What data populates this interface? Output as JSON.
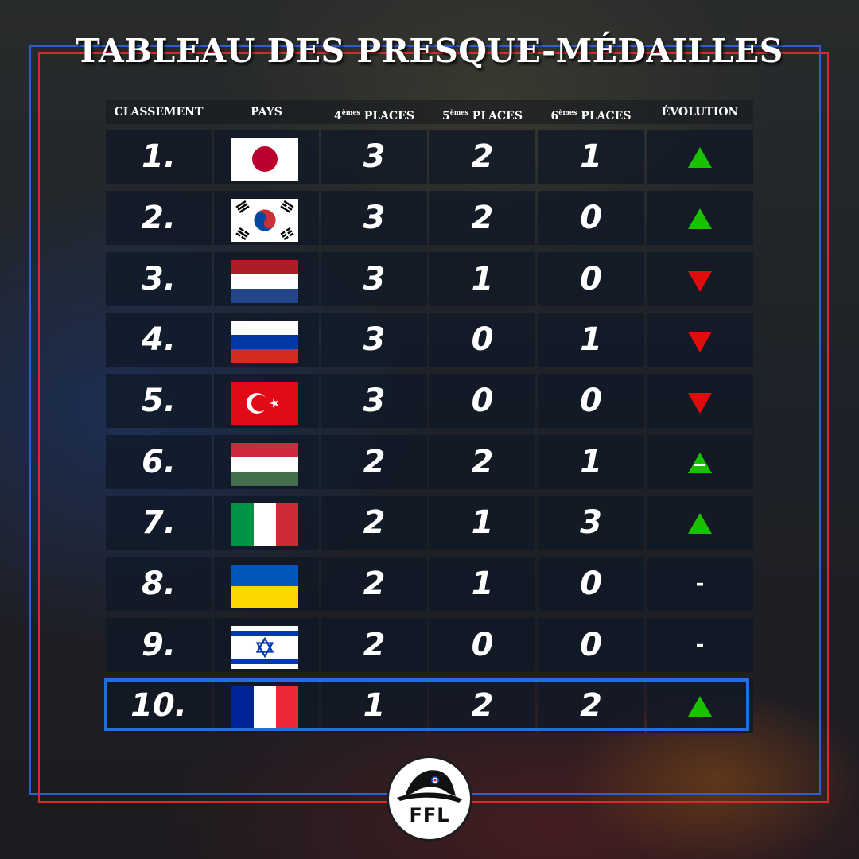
{
  "title": "TABLEAU DES PRESQUE-MÉDAILLES",
  "headers": {
    "rank": "CLASSEMENT",
    "country": "PAYS",
    "fourth_sup": "èmes",
    "fourth_num": "4",
    "fourth_label": "PLACES",
    "fifth_sup": "èmes",
    "fifth_num": "5",
    "fifth_label": "PLACES",
    "sixth_sup": "èmes",
    "sixth_num": "6",
    "sixth_label": "PLACES",
    "evolution": "ÉVOLUTION"
  },
  "rows": [
    {
      "rank": "1.",
      "flag": "japan-flag-icon",
      "fourth": "3",
      "fifth": "2",
      "sixth": "1",
      "evolution": "up"
    },
    {
      "rank": "2.",
      "flag": "south-korea-flag-icon",
      "fourth": "3",
      "fifth": "2",
      "sixth": "0",
      "evolution": "up"
    },
    {
      "rank": "3.",
      "flag": "netherlands-flag-icon",
      "fourth": "3",
      "fifth": "1",
      "sixth": "0",
      "evolution": "down"
    },
    {
      "rank": "4.",
      "flag": "russia-flag-icon",
      "fourth": "3",
      "fifth": "0",
      "sixth": "1",
      "evolution": "down"
    },
    {
      "rank": "5.",
      "flag": "turkey-flag-icon",
      "fourth": "3",
      "fifth": "0",
      "sixth": "0",
      "evolution": "down"
    },
    {
      "rank": "6.",
      "flag": "hungary-flag-icon",
      "fourth": "2",
      "fifth": "2",
      "sixth": "1",
      "evolution": "up-dash"
    },
    {
      "rank": "7.",
      "flag": "italy-flag-icon",
      "fourth": "2",
      "fifth": "1",
      "sixth": "3",
      "evolution": "up"
    },
    {
      "rank": "8.",
      "flag": "ukraine-flag-icon",
      "fourth": "2",
      "fifth": "1",
      "sixth": "0",
      "evolution": "-"
    },
    {
      "rank": "9.",
      "flag": "israel-flag-icon",
      "fourth": "2",
      "fifth": "0",
      "sixth": "0",
      "evolution": "-"
    },
    {
      "rank": "10.",
      "flag": "france-flag-icon",
      "fourth": "1",
      "fifth": "2",
      "sixth": "2",
      "evolution": "up"
    }
  ],
  "highlighted_row": "10.",
  "colors": {
    "up": "#19c200",
    "down": "#e00d0d",
    "highlight": "#1f6fe0",
    "frame_blue": "#2f5fcc",
    "frame_red": "#d8292d"
  },
  "logo": {
    "text": "FFL",
    "icon": "bicorne-hat-icon"
  }
}
